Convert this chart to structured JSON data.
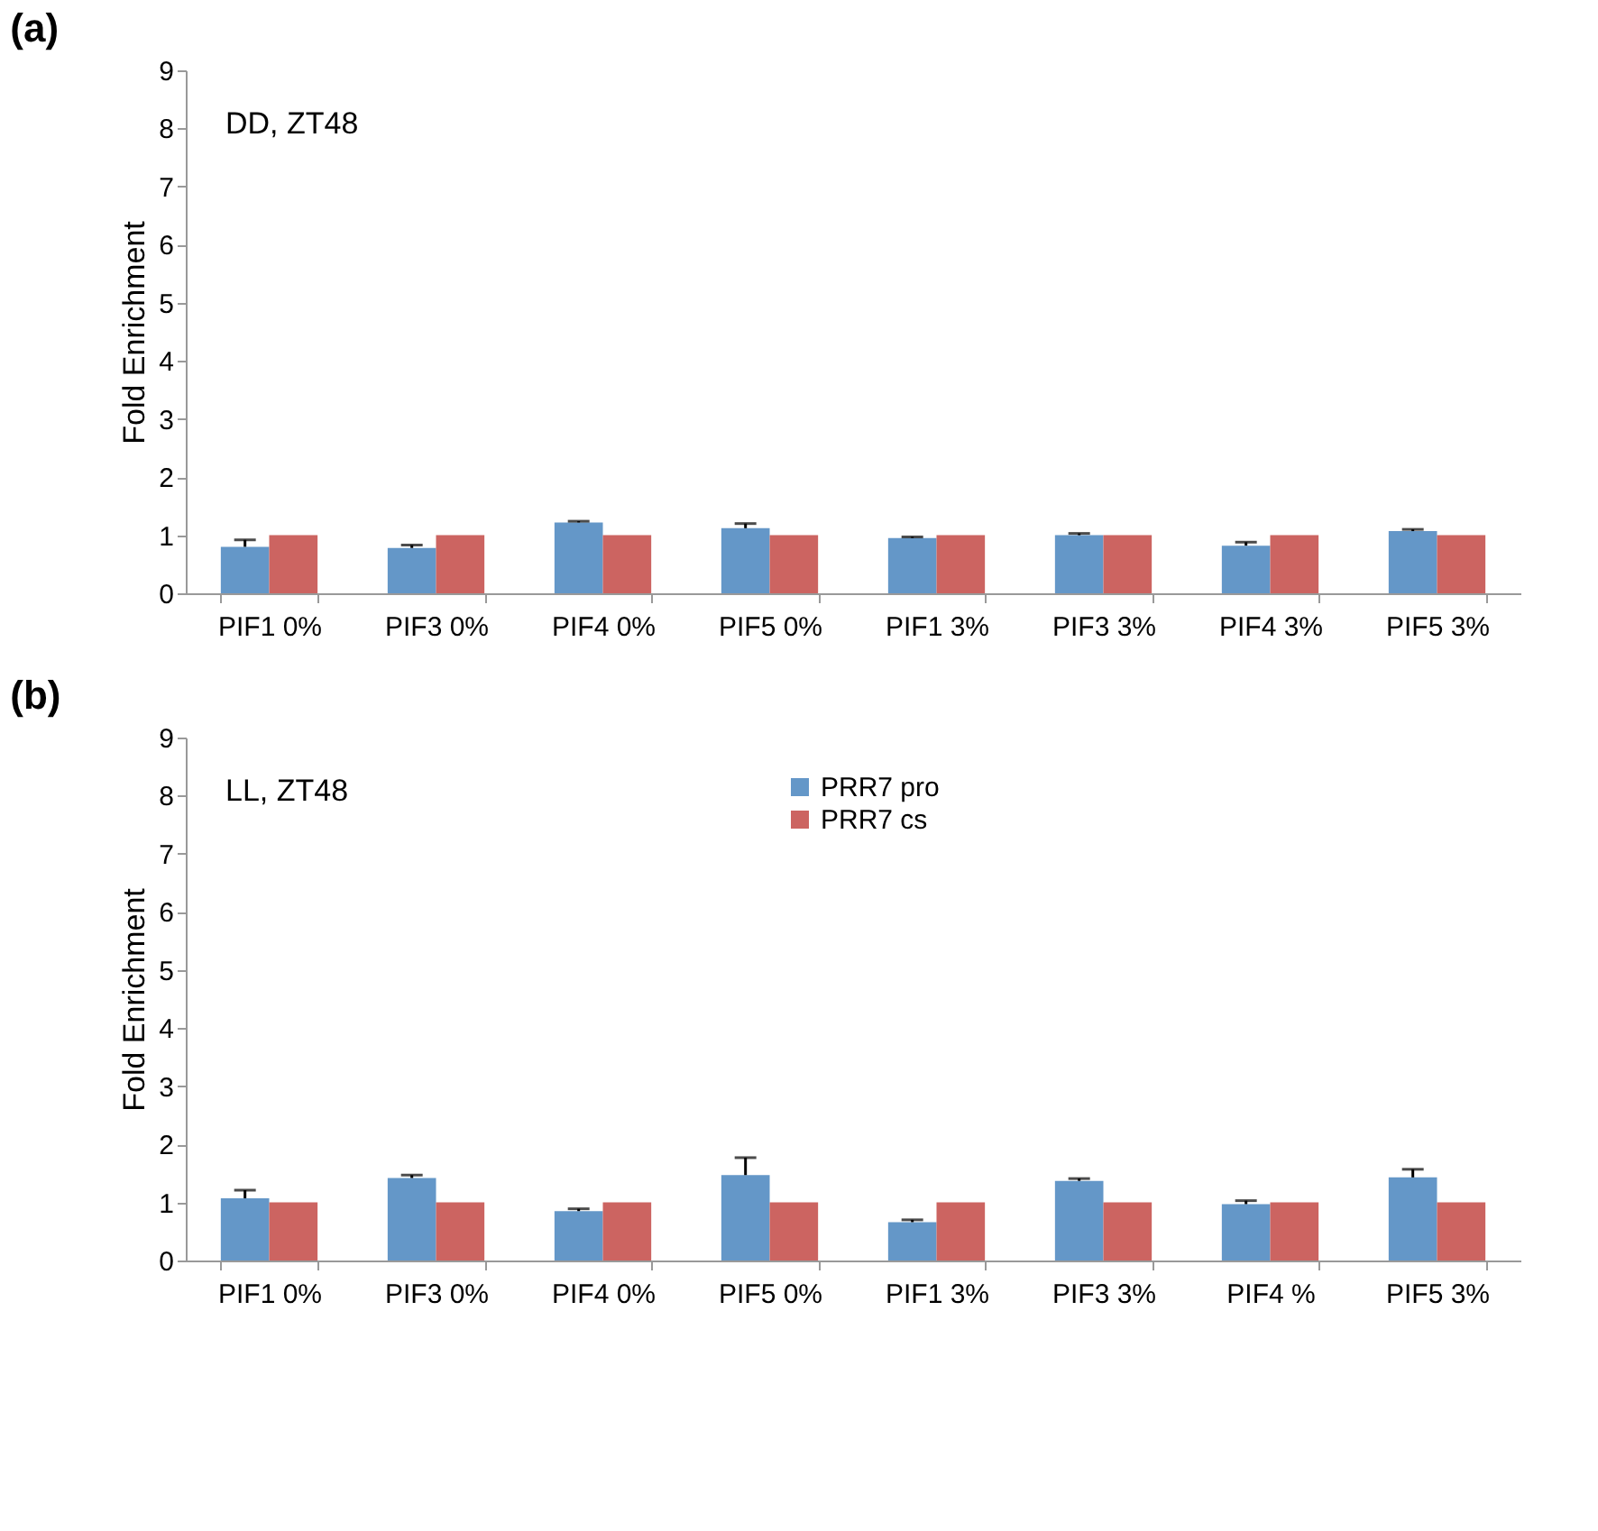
{
  "chart_data": [
    {
      "type": "bar",
      "title": "(a)",
      "ylabel": "Fold Enrichment",
      "annotations": [
        "DD, ZT48"
      ],
      "categories": [
        "PIF1 0%",
        "PIF3 0%",
        "PIF4 0%",
        "PIF5 0%",
        "PIF1 3%",
        "PIF3 3%",
        "PIF4 3%",
        "PIF5 3%"
      ],
      "series": [
        {
          "color": "#6497c8",
          "values": [
            0.8,
            0.78,
            1.22,
            1.12,
            0.95,
            1.0,
            0.82,
            1.07
          ],
          "errors": [
            [
              0.8,
              0.92
            ],
            [
              0.78,
              0.83
            ],
            [
              1.22,
              1.24
            ],
            [
              1.12,
              1.2
            ],
            [
              0.95,
              0.97
            ],
            [
              1.0,
              1.03
            ],
            [
              0.82,
              0.88
            ],
            [
              1.07,
              1.1
            ]
          ]
        },
        {
          "color": "#cc6461",
          "values": [
            1,
            1,
            1,
            1,
            1,
            1,
            1,
            1
          ]
        }
      ],
      "ylim": [
        0,
        9
      ],
      "yticks": [
        0,
        1,
        2,
        3,
        4,
        5,
        6,
        7,
        8,
        9
      ],
      "grid": false,
      "legend": false
    },
    {
      "type": "bar",
      "title": "(b)",
      "ylabel": "Fold Enrichment",
      "annotations": [
        "LL, ZT48"
      ],
      "categories": [
        "PIF1 0%",
        "PIF3 0%",
        "PIF4 0%",
        "PIF5 0%",
        "PIF1 3%",
        "PIF3 3%",
        "PIF4 %",
        "PIF5 3%"
      ],
      "series": [
        {
          "name": "PRR7 pro",
          "color": "#6497c8",
          "values": [
            1.07,
            1.42,
            0.85,
            1.47,
            0.66,
            1.37,
            0.97,
            1.43
          ],
          "errors": [
            [
              1.07,
              1.21
            ],
            [
              1.42,
              1.47
            ],
            [
              0.85,
              0.89
            ],
            [
              1.47,
              1.77
            ],
            [
              0.66,
              0.7
            ],
            [
              1.37,
              1.41
            ],
            [
              0.97,
              1.03
            ],
            [
              1.43,
              1.57
            ]
          ]
        },
        {
          "name": "PRR7 cs",
          "color": "#cc6461",
          "values": [
            1,
            1,
            1,
            1,
            1,
            1,
            1,
            1
          ]
        }
      ],
      "ylim": [
        0,
        9
      ],
      "yticks": [
        0,
        1,
        2,
        3,
        4,
        5,
        6,
        7,
        8,
        9
      ],
      "grid": false,
      "legend": "top"
    }
  ]
}
